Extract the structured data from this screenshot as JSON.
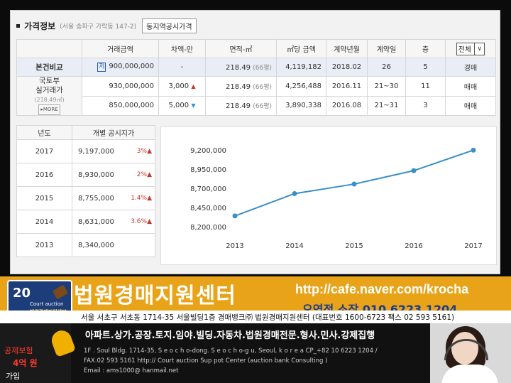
{
  "panel": {
    "title": "가격정보",
    "subtitle": "(서울 송파구 가락동 147-2)",
    "button": "동지역공시가격"
  },
  "main_table": {
    "headers": [
      "거래금액",
      "차액-만",
      "면적-㎡",
      "㎡당 금액",
      "계약년월",
      "계약일",
      "층",
      "전체"
    ],
    "row1": {
      "label": "본건비교",
      "tag": "저",
      "price": "900,000,000",
      "diff": "-",
      "area": "218.49",
      "pyeong": "(66평)",
      "per_m2": "4,119,182",
      "ym": "2018.02",
      "day": "26",
      "floor": "5",
      "type": "경매"
    },
    "group_label_1": "국토부",
    "group_label_2": "실거래가",
    "group_label_3": "(218.49㎡)",
    "more": "MORE",
    "row2": {
      "price": "930,000,000",
      "diff": "3,000",
      "arrow": "▲",
      "area": "218.49",
      "pyeong": "(66평)",
      "per_m2": "4,256,488",
      "ym": "2016.11",
      "day": "21~30",
      "floor": "11",
      "type": "매매"
    },
    "row3": {
      "price": "850,000,000",
      "diff": "5,000",
      "arrow": "▼",
      "area": "218.49",
      "pyeong": "(66평)",
      "per_m2": "3,890,338",
      "ym": "2016.08",
      "day": "21~31",
      "floor": "3",
      "type": "매매"
    }
  },
  "year_table": {
    "headers": [
      "년도",
      "개별 공시지가"
    ],
    "rows": [
      {
        "year": "2017",
        "value": "9,197,000",
        "pct": "3%▲"
      },
      {
        "year": "2016",
        "value": "8,930,000",
        "pct": "2%▲"
      },
      {
        "year": "2015",
        "value": "8,755,000",
        "pct": "1.4%▲"
      },
      {
        "year": "2014",
        "value": "8,631,000",
        "pct": "3.6%▲"
      },
      {
        "year": "2013",
        "value": "8,340,000",
        "pct": ""
      }
    ]
  },
  "chart_data": {
    "type": "line",
    "x": [
      "2013",
      "2014",
      "2015",
      "2016",
      "2017"
    ],
    "series": [
      {
        "values": [
          8340000,
          8631000,
          8755000,
          8930000,
          9197000
        ]
      }
    ],
    "yticks": [
      "8,200,000",
      "8,450,000",
      "8,700,000",
      "8,950,000",
      "9,200,000"
    ],
    "ylim": [
      8200000,
      9200000
    ],
    "grid": false,
    "line_color": "#3a8fc8"
  },
  "banner": {
    "logo_number": "20",
    "logo_text": "Court auction",
    "logo_text2": "법원경매지원센터",
    "title": "법원경매지원센터",
    "url": "http://cafe.naver.com/krocha",
    "contact": "오연정 소장 010 6223 1204",
    "address": "서울 서초구 서초동 1714-35 서울빌딩1층 경매뱅크㈜ 법원경매지원센터 (대표번호 1600-6723 팩스 02 593 5161)"
  },
  "footer": {
    "side1": "공제보험",
    "side2": "4억 원",
    "side3": "가입",
    "services": "아파트.상가.공장.토지.임야.빌딩.자동차.법원경매전문.형사.민사.강제집행",
    "line1": "1F . Soul Bldg. 1714-35, S e o c h o-dong. S e o c h o-g u, Seoul, k o r e a CP_+82  10 6223 1204  /",
    "line2": "FAX.02 593 5161  http:// Court auction Sup pot Center (auction bank Consulting )",
    "line3": "Email :  ams1000@ hanmail.net"
  },
  "colors": {
    "accent_banner": "#e8a319",
    "chart_line": "#3a8fc8",
    "up": "#c0392b",
    "down": "#3a8fd0"
  }
}
